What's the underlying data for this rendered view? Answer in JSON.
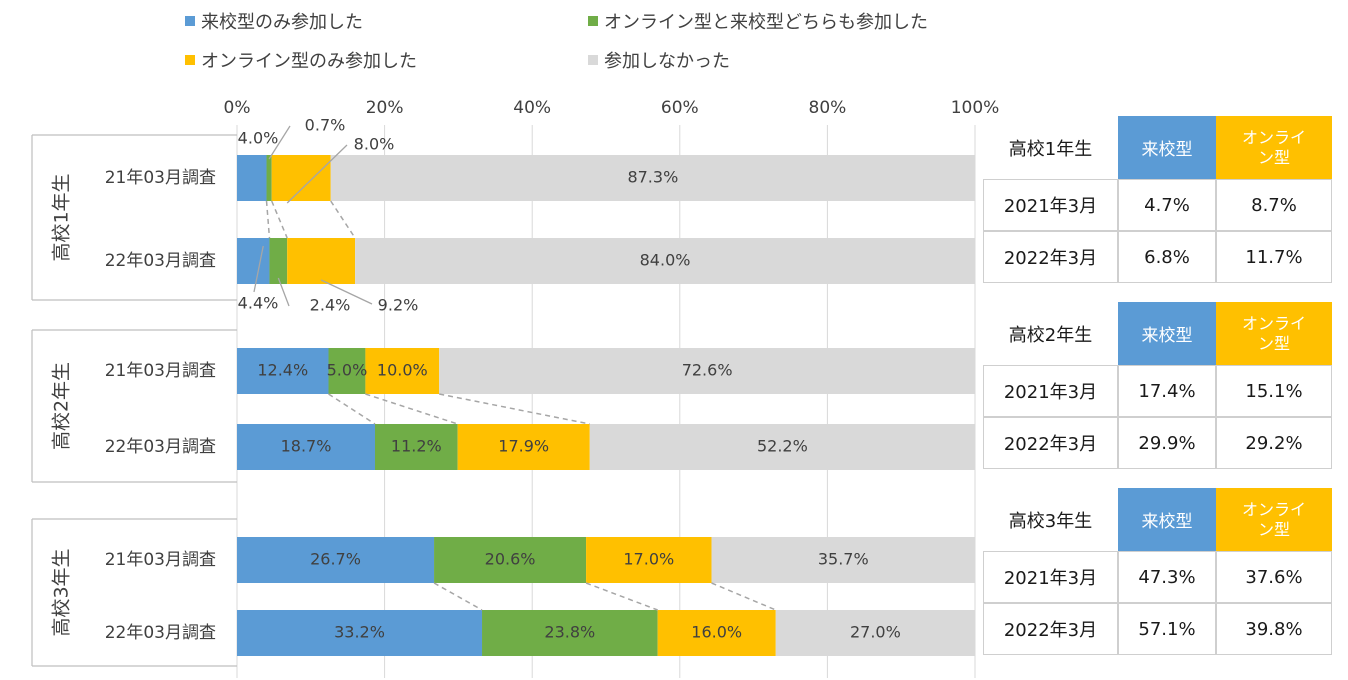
{
  "legend": [
    {
      "label": "来校型のみ参加した",
      "color": "#5b9bd5"
    },
    {
      "label": "オンライン型と来校型どちらも参加した",
      "color": "#70ad47"
    },
    {
      "label": "オンライン型のみ参加した",
      "color": "#ffc000"
    },
    {
      "label": "参加しなかった",
      "color": "#d9d9d9"
    }
  ],
  "chart_data": {
    "type": "bar",
    "orientation": "horizontal",
    "stacked": true,
    "percent": true,
    "xlim": [
      0,
      100
    ],
    "x_ticks": [
      "0%",
      "20%",
      "40%",
      "60%",
      "80%",
      "100%"
    ],
    "x_tick_values": [
      0,
      20,
      40,
      60,
      80,
      100
    ],
    "series_names": [
      "来校型のみ参加した",
      "オンライン型と来校型どちらも参加した",
      "オンライン型のみ参加した",
      "参加しなかった"
    ],
    "colors": [
      "#5b9bd5",
      "#70ad47",
      "#ffc000",
      "#d9d9d9"
    ],
    "groups": [
      {
        "name": "高校1年生",
        "bars": [
          {
            "category": "21年03月調査",
            "values": [
              4.0,
              0.7,
              8.0,
              87.3
            ],
            "labels": [
              "4.0%",
              "0.7%",
              "8.0%",
              "87.3%"
            ]
          },
          {
            "category": "22年03月調査",
            "values": [
              4.4,
              2.4,
              9.2,
              84.0
            ],
            "labels": [
              "4.4%",
              "2.4%",
              "9.2%",
              "84.0%"
            ]
          }
        ]
      },
      {
        "name": "高校2年生",
        "bars": [
          {
            "category": "21年03月調査",
            "values": [
              12.4,
              5.0,
              10.0,
              72.6
            ],
            "labels": [
              "12.4%",
              "5.0%",
              "10.0%",
              "72.6%"
            ]
          },
          {
            "category": "22年03月調査",
            "values": [
              18.7,
              11.2,
              17.9,
              52.2
            ],
            "labels": [
              "18.7%",
              "11.2%",
              "17.9%",
              "52.2%"
            ]
          }
        ]
      },
      {
        "name": "高校3年生",
        "bars": [
          {
            "category": "21年03月調査",
            "values": [
              26.7,
              20.6,
              17.0,
              35.7
            ],
            "labels": [
              "26.7%",
              "20.6%",
              "17.0%",
              "35.7%"
            ]
          },
          {
            "category": "22年03月調査",
            "values": [
              33.2,
              23.8,
              16.0,
              27.0
            ],
            "labels": [
              "33.2%",
              "23.8%",
              "16.0%",
              "27.0%"
            ]
          }
        ]
      }
    ]
  },
  "summary_tables": [
    {
      "grade": "高校1年生",
      "col_campus": "来校型",
      "col_online": "オンライン型",
      "rows": [
        {
          "period": "2021年3月",
          "campus": "4.7%",
          "online": "8.7%"
        },
        {
          "period": "2022年3月",
          "campus": "6.8%",
          "online": "11.7%"
        }
      ]
    },
    {
      "grade": "高校2年生",
      "col_campus": "来校型",
      "col_online": "オンライン型",
      "rows": [
        {
          "period": "2021年3月",
          "campus": "17.4%",
          "online": "15.1%"
        },
        {
          "period": "2022年3月",
          "campus": "29.9%",
          "online": "29.2%"
        }
      ]
    },
    {
      "grade": "高校3年生",
      "col_campus": "来校型",
      "col_online": "オンライン型",
      "rows": [
        {
          "period": "2021年3月",
          "campus": "47.3%",
          "online": "37.6%"
        },
        {
          "period": "2022年3月",
          "campus": "57.1%",
          "online": "39.8%"
        }
      ]
    }
  ]
}
